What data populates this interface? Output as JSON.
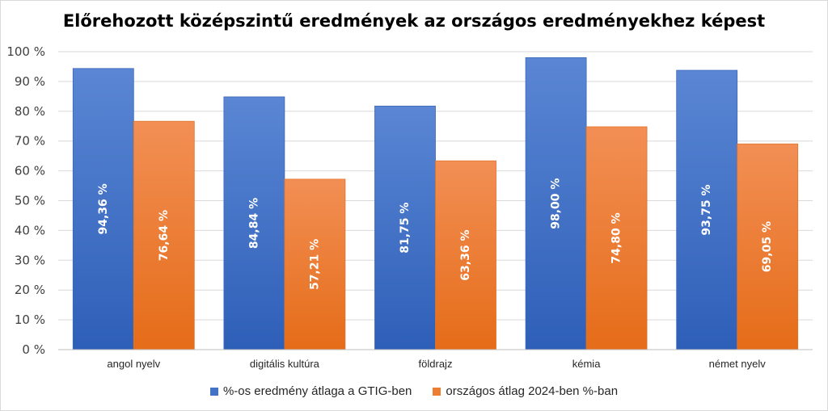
{
  "chart_data": {
    "type": "bar",
    "title": "Előrehozott középszintű eredmények az országos eredményekhez képest",
    "categories": [
      "angol nyelv",
      "digitális kultúra",
      "földrajz",
      "kémia",
      "német nyelv"
    ],
    "series": [
      {
        "name": "%-os eredmény átlaga a GTIG-ben",
        "values": [
          94.36,
          84.84,
          81.75,
          98.0,
          93.75
        ],
        "labels": [
          "94,36 %",
          "84,84 %",
          "81,75 %",
          "98,00 %",
          "93,75 %"
        ],
        "color": "#4472c4"
      },
      {
        "name": "országos átlag 2024-ben %-ban",
        "values": [
          76.64,
          57.21,
          63.36,
          74.8,
          69.05
        ],
        "labels": [
          "76,64 %",
          "57,21 %",
          "63,36 %",
          "74,80 %",
          "69,05 %"
        ],
        "color": "#ed7d31"
      }
    ],
    "y_ticks": [
      "0 %",
      "10 %",
      "20 %",
      "30 %",
      "40 %",
      "50 %",
      "60 %",
      "70 %",
      "80 %",
      "90 %",
      "100 %"
    ],
    "ylim": [
      0,
      100
    ],
    "grid": true,
    "legend_position": "bottom"
  }
}
